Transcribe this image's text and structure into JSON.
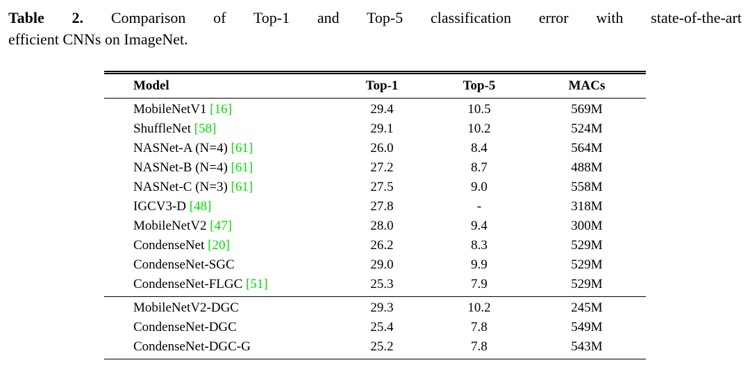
{
  "caption": {
    "label": "Table 2.",
    "line1_rest": "Comparison of Top-1 and Top-5 classification error with state-of-the-art",
    "line2": "efficient CNNs on ImageNet."
  },
  "table": {
    "headers": [
      "Model",
      "Top-1",
      "Top-5",
      "MACs"
    ],
    "rows": [
      {
        "model": "MobileNetV1",
        "cite": "[16]",
        "top1": "29.4",
        "top5": "10.5",
        "macs": "569M"
      },
      {
        "model": "ShuffleNet",
        "cite": "[58]",
        "top1": "29.1",
        "top5": "10.2",
        "macs": "524M"
      },
      {
        "model": "NASNet-A (N=4)",
        "cite": "[61]",
        "top1": "26.0",
        "top5": "8.4",
        "macs": "564M"
      },
      {
        "model": "NASNet-B (N=4)",
        "cite": "[61]",
        "top1": "27.2",
        "top5": "8.7",
        "macs": "488M"
      },
      {
        "model": "NASNet-C (N=3)",
        "cite": "[61]",
        "top1": "27.5",
        "top5": "9.0",
        "macs": "558M"
      },
      {
        "model": "IGCV3-D",
        "cite": "[48]",
        "top1": "27.8",
        "top5": "-",
        "macs": "318M"
      },
      {
        "model": "MobileNetV2",
        "cite": "[47]",
        "top1": "28.0",
        "top5": "9.4",
        "macs": "300M"
      },
      {
        "model": "CondenseNet",
        "cite": "[20]",
        "top1": "26.2",
        "top5": "8.3",
        "macs": "529M"
      },
      {
        "model": "CondenseNet-SGC",
        "cite": "",
        "top1": "29.0",
        "top5": "9.9",
        "macs": "529M"
      },
      {
        "model": "CondenseNet-FLGC",
        "cite": "[51]",
        "top1": "25.3",
        "top5": "7.9",
        "macs": "529M"
      },
      {
        "model": "MobileNetV2-DGC",
        "cite": "",
        "top1": "29.3",
        "top5": "10.2",
        "macs": "245M"
      },
      {
        "model": "CondenseNet-DGC",
        "cite": "",
        "top1": "25.4",
        "top5": "7.8",
        "macs": "549M"
      },
      {
        "model": "CondenseNet-DGC-G",
        "cite": "",
        "top1": "25.2",
        "top5": "7.8",
        "macs": "543M"
      }
    ]
  },
  "colors": {
    "citation_green": "#00dd00",
    "rule": "#000000"
  }
}
